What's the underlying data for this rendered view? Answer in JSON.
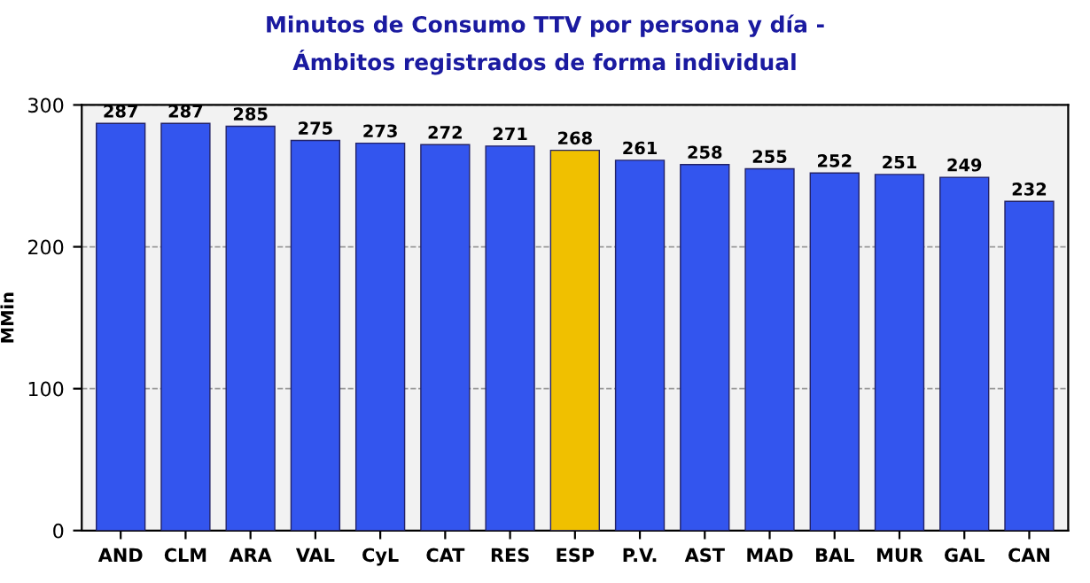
{
  "chart_data": {
    "type": "bar",
    "title": "Minutos de Consumo TTV por persona y día -",
    "subtitle": "Ámbitos registrados de forma individual",
    "ylabel": "MMin",
    "categories": [
      "AND",
      "CLM",
      "ARA",
      "VAL",
      "CyL",
      "CAT",
      "RES",
      "ESP",
      "P.V.",
      "AST",
      "MAD",
      "BAL",
      "MUR",
      "GAL",
      "CAN"
    ],
    "values": [
      287,
      287,
      285,
      275,
      273,
      272,
      271,
      268,
      261,
      258,
      255,
      252,
      251,
      249,
      232
    ],
    "colors": [
      "#3355ee",
      "#3355ee",
      "#3355ee",
      "#3355ee",
      "#3355ee",
      "#3355ee",
      "#3355ee",
      "#f0c000",
      "#3355ee",
      "#3355ee",
      "#3355ee",
      "#3355ee",
      "#3355ee",
      "#3355ee",
      "#3355ee"
    ],
    "ylim": [
      0,
      300
    ],
    "yticks": [
      0,
      100,
      200,
      300
    ],
    "grid": "y",
    "data_labels": true
  }
}
